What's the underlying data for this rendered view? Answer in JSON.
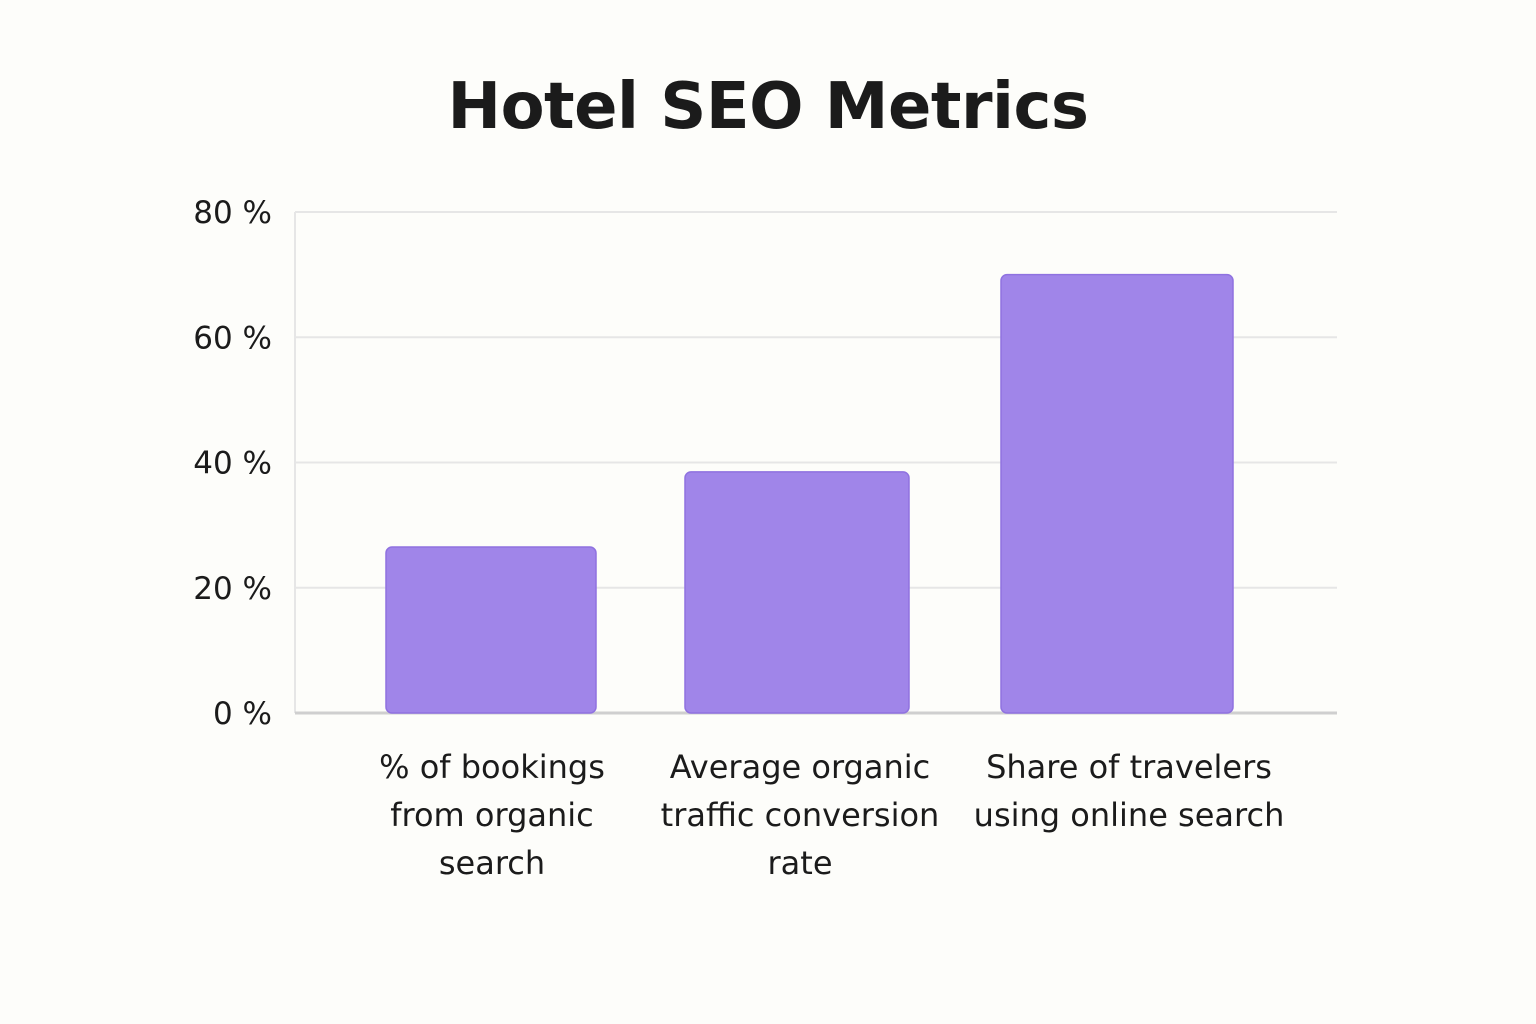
{
  "chart_data": {
    "type": "bar",
    "title": "Hotel SEO Metrics",
    "xlabel": "",
    "ylabel": "",
    "categories": [
      [
        "% of bookings",
        "from organic",
        "search"
      ],
      [
        "Average organic",
        "traffic conversion",
        "rate"
      ],
      [
        "Share of travelers",
        "using online search"
      ]
    ],
    "values": [
      26.5,
      38.5,
      70
    ],
    "ylim": [
      0,
      80
    ],
    "yticks": [
      0,
      20,
      40,
      60,
      80
    ],
    "ytick_labels": [
      "0 %",
      "20 %",
      "40 %",
      "60 %",
      "80 %"
    ],
    "grid": true,
    "legend": "none",
    "colors": {
      "bar": "#a085e9",
      "bar_edge": "#8f72e0",
      "grid": "#e6e6e6",
      "axis": "#cfcfcf"
    }
  }
}
